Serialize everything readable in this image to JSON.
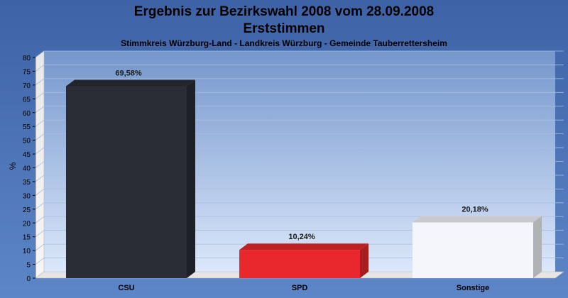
{
  "chart_data": {
    "type": "bar",
    "title": "Ergebnis zur Bezirkswahl 2008 vom 28.09.2008",
    "title_line2": "Erststimmen",
    "subtitle": "Stimmkreis Würzburg-Land - Landkreis Würzburg - Gemeinde Tauberrettersheim",
    "ylabel": "%",
    "xlabel": "",
    "ylim": [
      0,
      80
    ],
    "ytick_step": 5,
    "grid": true,
    "legend": "none",
    "categories": [
      "CSU",
      "SPD",
      "Sonstige"
    ],
    "values": [
      69.58,
      10.24,
      20.18
    ],
    "value_labels": [
      "69,58%",
      "10,24%",
      "20,18%"
    ],
    "colors": [
      "#2a2d36",
      "#e8282c",
      "#f4f6fc"
    ],
    "y_tick_labels": [
      "0",
      "5",
      "10",
      "15",
      "20",
      "25",
      "30",
      "35",
      "40",
      "45",
      "50",
      "55",
      "60",
      "65",
      "70",
      "75",
      "80"
    ]
  }
}
